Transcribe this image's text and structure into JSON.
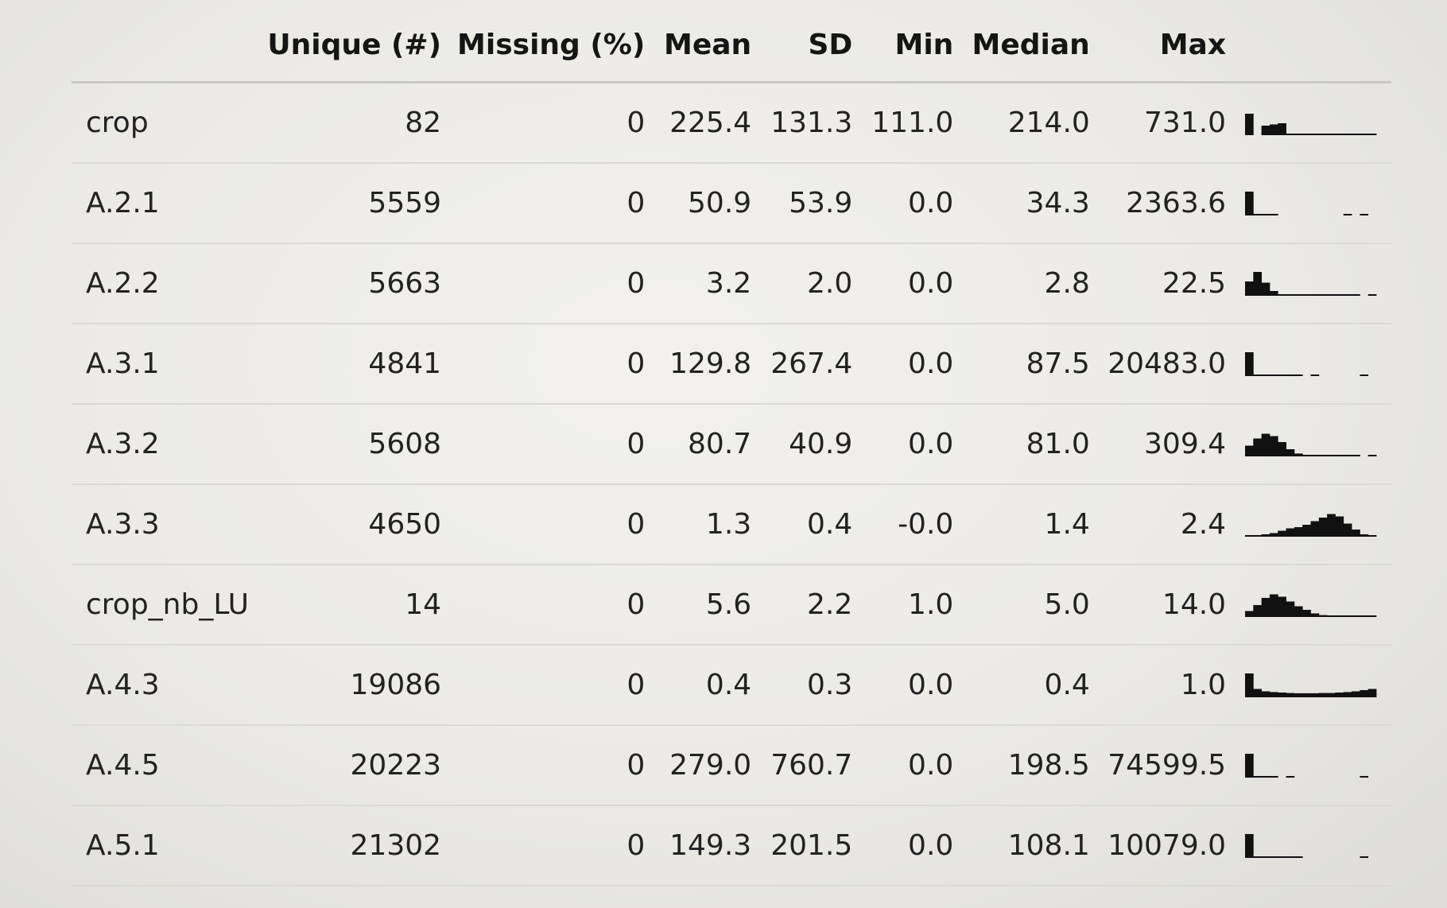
{
  "columns": {
    "name": "",
    "unique": "Unique (#)",
    "missing": "Missing (%)",
    "mean": "Mean",
    "sd": "SD",
    "min": "Min",
    "median": "Median",
    "max": "Max",
    "hist": ""
  },
  "rows": [
    {
      "name": "crop",
      "unique": "82",
      "missing": "0",
      "mean": "225.4",
      "sd": "131.3",
      "min": "111.0",
      "median": "214.0",
      "max": "731.0",
      "hist": [
        0.9,
        0,
        0.4,
        0.45,
        0.5,
        0.02,
        0.02,
        0.02,
        0.02,
        0.02,
        0.02,
        0.02,
        0.02,
        0.02,
        0.02,
        0.02
      ]
    },
    {
      "name": "A.2.1",
      "unique": "5559",
      "missing": "0",
      "mean": "50.9",
      "sd": "53.9",
      "min": "0.0",
      "median": "34.3",
      "max": "2363.6",
      "hist": [
        1.0,
        0.05,
        0.05,
        0.05,
        0,
        0,
        0,
        0,
        0,
        0,
        0,
        0,
        0.05,
        0,
        0.05,
        0
      ]
    },
    {
      "name": "A.2.2",
      "unique": "5663",
      "missing": "0",
      "mean": "3.2",
      "sd": "2.0",
      "min": "0.0",
      "median": "2.8",
      "max": "22.5",
      "hist": [
        0.6,
        1.0,
        0.55,
        0.2,
        0.05,
        0.03,
        0.03,
        0.03,
        0.03,
        0.03,
        0.03,
        0.03,
        0.03,
        0.03,
        0,
        0.05
      ]
    },
    {
      "name": "A.3.1",
      "unique": "4841",
      "missing": "0",
      "mean": "129.8",
      "sd": "267.4",
      "min": "0.0",
      "median": "87.5",
      "max": "20483.0",
      "hist": [
        1.0,
        0.05,
        0.05,
        0.05,
        0.05,
        0.05,
        0.05,
        0,
        0.05,
        0,
        0,
        0,
        0,
        0,
        0.05,
        0
      ]
    },
    {
      "name": "A.3.2",
      "unique": "5608",
      "missing": "0",
      "mean": "80.7",
      "sd": "40.9",
      "min": "0.0",
      "median": "81.0",
      "max": "309.4",
      "hist": [
        0.45,
        0.75,
        0.95,
        0.85,
        0.6,
        0.3,
        0.12,
        0.05,
        0.03,
        0.03,
        0.03,
        0.03,
        0.03,
        0.03,
        0,
        0.05
      ]
    },
    {
      "name": "A.3.3",
      "unique": "4650",
      "missing": "0",
      "mean": "1.3",
      "sd": "0.4",
      "min": "-0.0",
      "median": "1.4",
      "max": "2.4",
      "hist": [
        0.03,
        0.06,
        0.1,
        0.15,
        0.25,
        0.35,
        0.4,
        0.5,
        0.65,
        0.8,
        0.95,
        0.85,
        0.55,
        0.3,
        0.1,
        0.03
      ]
    },
    {
      "name": "crop_nb_LU",
      "unique": "14",
      "missing": "0",
      "mean": "5.6",
      "sd": "2.2",
      "min": "1.0",
      "median": "5.0",
      "max": "14.0",
      "hist": [
        0.25,
        0.5,
        0.8,
        0.95,
        0.85,
        0.65,
        0.45,
        0.3,
        0.15,
        0.08,
        0.04,
        0.03,
        0.03,
        0.02,
        0.02,
        0.02
      ]
    },
    {
      "name": "A.4.3",
      "unique": "19086",
      "missing": "0",
      "mean": "0.4",
      "sd": "0.3",
      "min": "0.0",
      "median": "0.4",
      "max": "1.0",
      "hist": [
        1.0,
        0.35,
        0.25,
        0.22,
        0.2,
        0.18,
        0.17,
        0.17,
        0.17,
        0.18,
        0.18,
        0.2,
        0.22,
        0.25,
        0.3,
        0.35
      ]
    },
    {
      "name": "A.4.5",
      "unique": "20223",
      "missing": "0",
      "mean": "279.0",
      "sd": "760.7",
      "min": "0.0",
      "median": "198.5",
      "max": "74599.5",
      "hist": [
        1.0,
        0.05,
        0.05,
        0.05,
        0,
        0.05,
        0,
        0,
        0,
        0,
        0,
        0,
        0,
        0,
        0.05,
        0
      ]
    },
    {
      "name": "A.5.1",
      "unique": "21302",
      "missing": "0",
      "mean": "149.3",
      "sd": "201.5",
      "min": "0.0",
      "median": "108.1",
      "max": "10079.0",
      "hist": [
        1.0,
        0.05,
        0.05,
        0.05,
        0.05,
        0.05,
        0.05,
        0,
        0,
        0,
        0,
        0,
        0,
        0,
        0.05,
        0
      ]
    }
  ],
  "colors": {
    "text": "#1c1c1c",
    "hist_fill": "#111111",
    "row_rule": "#dad9d4"
  }
}
